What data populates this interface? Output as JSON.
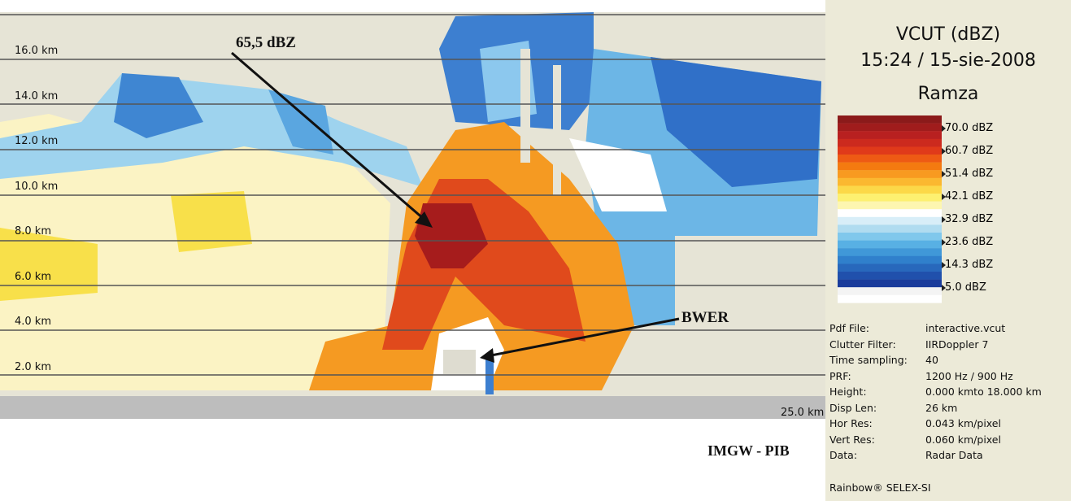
{
  "height_labels": [
    "16.0 km",
    "14.0 km",
    "12.0 km",
    "10.0 km",
    "8.0 km",
    "6.0 km",
    "4.0 km",
    "2.0 km"
  ],
  "range_label": "25.0 km",
  "annotations": {
    "peak": "65,5 dBZ",
    "bwer": "BWER"
  },
  "credit": "IMGW - PIB",
  "panel": {
    "title": "VCUT (dBZ)",
    "time": "15:24 / 15-sie-2008",
    "site": "Ramza"
  },
  "legend": [
    "70.0 dBZ",
    "60.7 dBZ",
    "51.4 dBZ",
    "42.1 dBZ",
    "32.9 dBZ",
    "23.6 dBZ",
    "14.3 dBZ",
    "5.0 dBZ"
  ],
  "info": [
    [
      "Pdf File:",
      "interactive.vcut"
    ],
    [
      "Clutter Filter:",
      "IIRDoppler 7"
    ],
    [
      "Time sampling:",
      "40"
    ],
    [
      "PRF:",
      "1200 Hz / 900 Hz"
    ],
    [
      "Height:",
      "0.000 kmto 18.000 km"
    ],
    [
      "Disp Len:",
      "26 km"
    ],
    [
      "Hor Res:",
      "0.043 km/pixel"
    ],
    [
      "Vert Res:",
      "0.060 km/pixel"
    ],
    [
      "Data:",
      "Radar Data"
    ]
  ],
  "footer": "Rainbow® SELEX-SI"
}
